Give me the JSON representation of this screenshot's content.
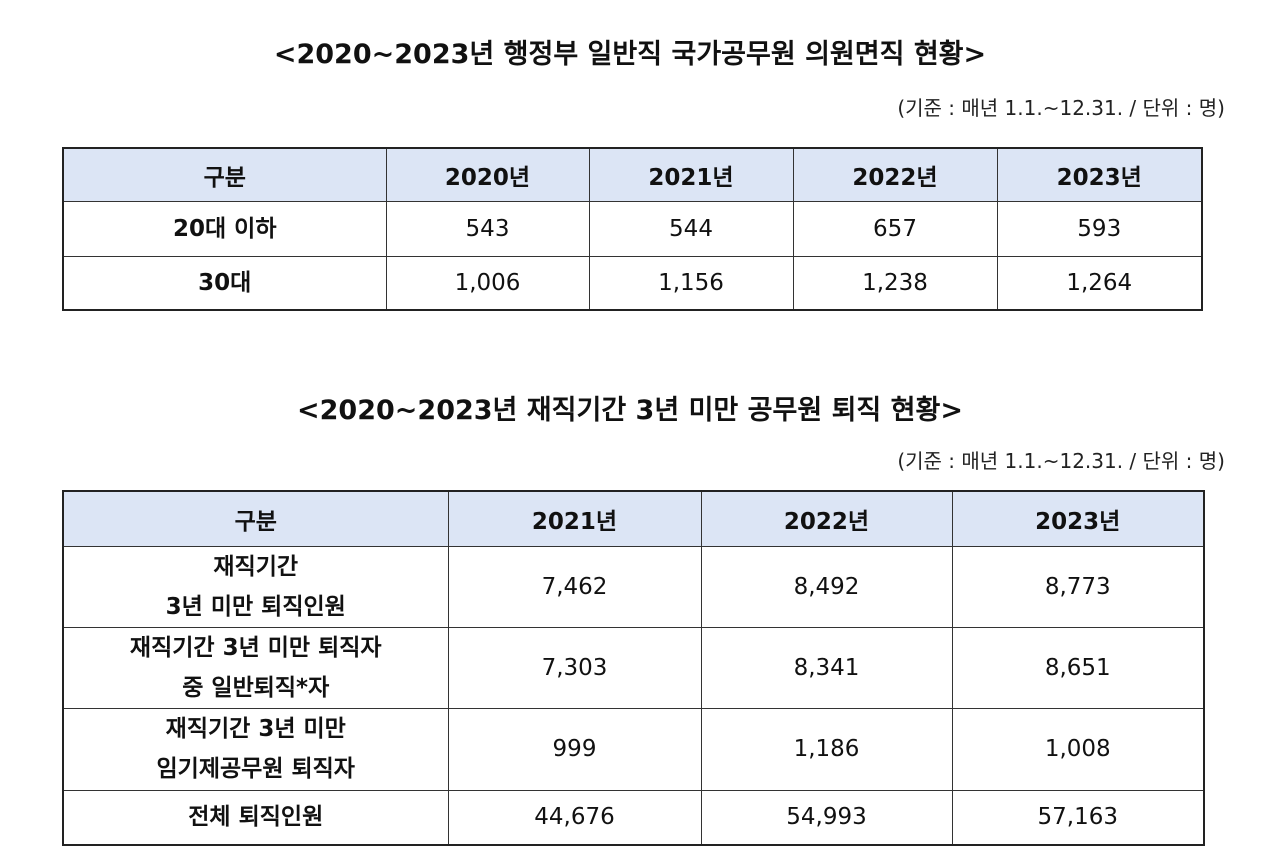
{
  "table1": {
    "title": "<2020~2023년 행정부 일반직 국가공무원 의원면직 현황>",
    "note": "(기준 : 매년 1.1.~12.31. / 단위 : 명)",
    "header": [
      "구분",
      "2020년",
      "2021년",
      "2022년",
      "2023년"
    ],
    "rows": [
      {
        "label": [
          "20대 이하"
        ],
        "values": [
          "543",
          "544",
          "657",
          "593"
        ]
      },
      {
        "label": [
          "30대"
        ],
        "values": [
          "1,006",
          "1,156",
          "1,238",
          "1,264"
        ]
      }
    ]
  },
  "table2": {
    "title": "<2020~2023년 재직기간 3년 미만 공무원 퇴직 현황>",
    "note": "(기준 : 매년 1.1.~12.31. / 단위 : 명)",
    "header": [
      "구분",
      "2021년",
      "2022년",
      "2023년"
    ],
    "rows": [
      {
        "label": [
          "재직기간",
          "3년 미만 퇴직인원"
        ],
        "values": [
          "7,462",
          "8,492",
          "8,773"
        ]
      },
      {
        "label": [
          "재직기간 3년 미만 퇴직자",
          "중 일반퇴직*자"
        ],
        "values": [
          "7,303",
          "8,341",
          "8,651"
        ]
      },
      {
        "label": [
          "재직기간 3년 미만",
          "임기제공무원 퇴직자"
        ],
        "values": [
          "999",
          "1,186",
          "1,008"
        ]
      },
      {
        "label": [
          "전체 퇴직인원"
        ],
        "values": [
          "44,676",
          "54,993",
          "57,163"
        ]
      }
    ]
  }
}
